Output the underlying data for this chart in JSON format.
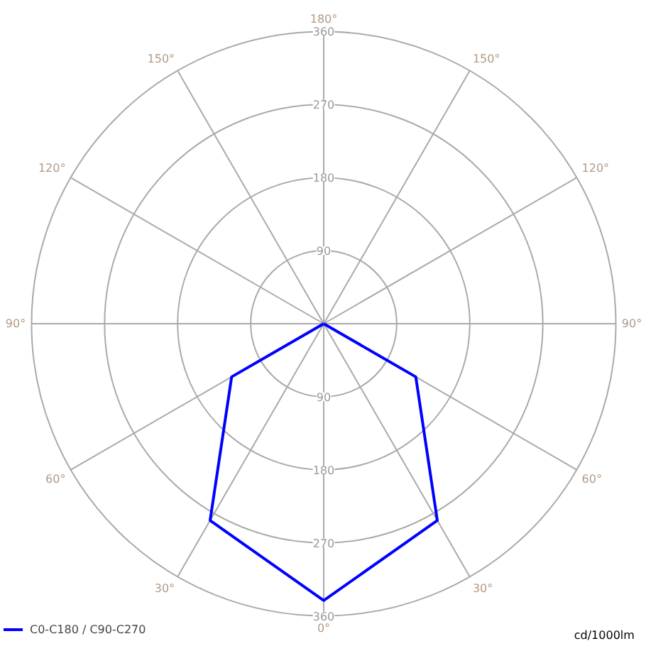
{
  "chart_data": {
    "type": "radar",
    "categories": [
      "180°",
      "150°",
      "120°",
      "90°",
      "60°",
      "30°",
      "0°",
      "30°",
      "60°",
      "90°",
      "120°",
      "150°"
    ],
    "series": [
      {
        "name": "C0-C180 / C90-C270",
        "color": "#0000ff",
        "values": [
          0,
          0,
          0,
          0,
          131,
          280,
          341,
          280,
          131,
          0,
          0,
          0
        ]
      }
    ],
    "ylim": [
      0,
      360
    ],
    "yticks": [
      90,
      180,
      270,
      360
    ],
    "grid": true,
    "legend": "bottom left",
    "marker": "none",
    "line_style": "solid",
    "annotations": [
      "cd/1000lm",
      "90",
      "180",
      "270",
      "360"
    ]
  }
}
